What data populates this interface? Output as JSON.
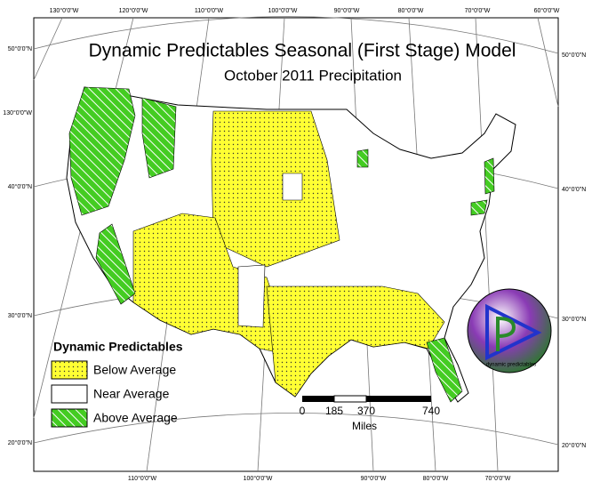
{
  "title": "Dynamic Predictables Seasonal (First Stage) Model",
  "subtitle": "October 2011 Precipitation",
  "legend": {
    "title": "Dynamic Predictables",
    "items": [
      "Below Average",
      "Near Average",
      "Above Average"
    ]
  },
  "scale_bar": {
    "labels": [
      "0",
      "185",
      "370",
      "740"
    ],
    "unit": "Miles"
  },
  "graticule": {
    "top": [
      "130°0'0\"W",
      "120°0'0\"W",
      "110°0'0\"W",
      "100°0'0\"W",
      "90°0'0\"W",
      "80°0'0\"W",
      "70°0'0\"W",
      "60°0'0\"W"
    ],
    "left": [
      "50°0'0\"N",
      "130°0'0\"W",
      "40°0'0\"N",
      "30°0'0\"N",
      "20°0'0\"N"
    ],
    "right": [
      "50°0'0\"N",
      "40°0'0\"N",
      "30°0'0\"N",
      "20°0'0\"N"
    ],
    "bottom": [
      "110°0'0\"W",
      "100°0'0\"W",
      "90°0'0\"W",
      "80°0'0\"W",
      "70°0'0\"W"
    ]
  },
  "logo": "dynamic predictables"
}
